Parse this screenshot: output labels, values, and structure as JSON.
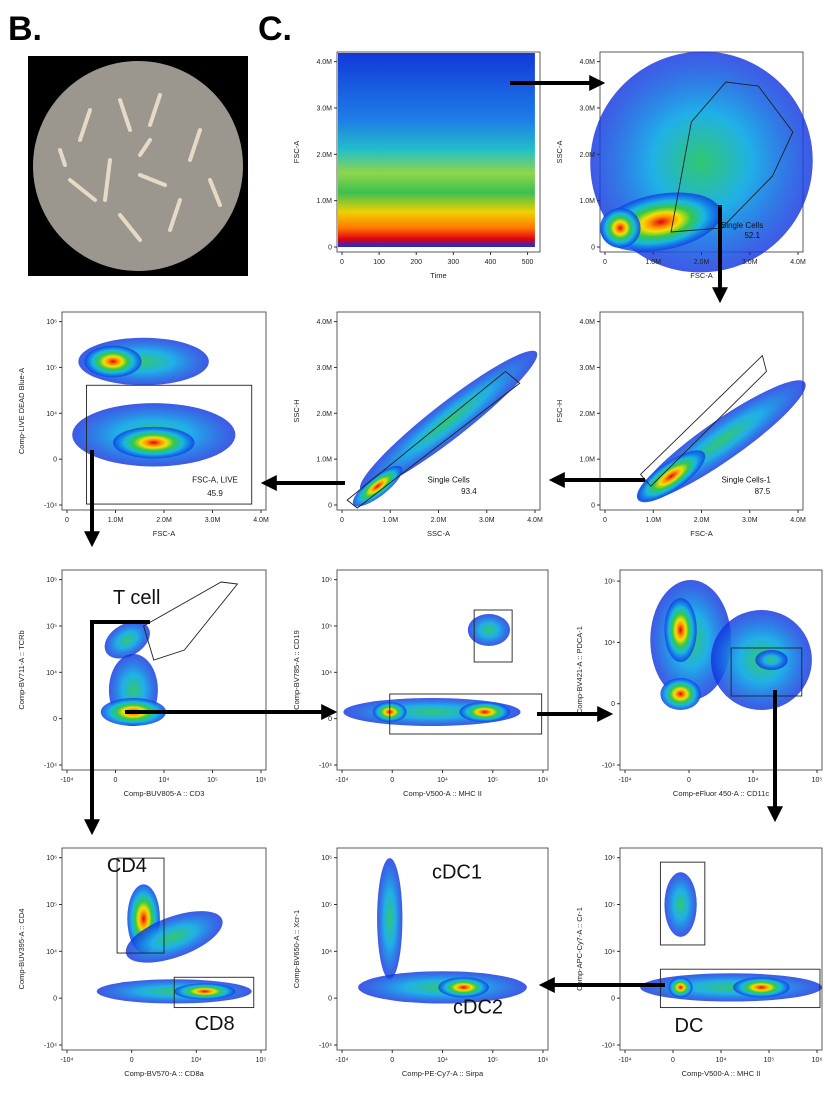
{
  "panel_labels": [
    "B.",
    "C."
  ],
  "plots": [
    {
      "y_label": "FSC-A",
      "x_label": "Time",
      "xticks": [
        "0",
        "100",
        "200",
        "300",
        "400",
        "500"
      ],
      "yticks": [
        "0",
        "1.0M",
        "2.0M",
        "3.0M",
        "4.0M"
      ],
      "annotations": []
    },
    {
      "y_label": "SSC-A",
      "x_label": "FSC-A",
      "xticks": [
        "0",
        "1.0M",
        "2.0M",
        "3.0M",
        "4.0M"
      ],
      "yticks": [
        "0",
        "1.0M",
        "2.0M",
        "3.0M",
        "4.0M"
      ],
      "annotations": [
        "Single Cells",
        "52.1"
      ]
    },
    {
      "y_label": "Comp-LIVE DEAD Blue-A",
      "x_label": "FSC-A",
      "xticks": [
        "0",
        "1.0M",
        "2.0M",
        "3.0M",
        "4.0M"
      ],
      "yticks": [
        "-10⁴",
        "0",
        "10⁴",
        "10⁵",
        "10⁶"
      ],
      "annotations": [
        "FSC-A, LIVE",
        "45.9"
      ]
    },
    {
      "y_label": "SSC-H",
      "x_label": "SSC-A",
      "xticks": [
        "0",
        "1.0M",
        "2.0M",
        "3.0M",
        "4.0M"
      ],
      "yticks": [
        "0",
        "1.0M",
        "2.0M",
        "3.0M",
        "4.0M"
      ],
      "annotations": [
        "Single Cells",
        "93.4"
      ]
    },
    {
      "y_label": "FSC-H",
      "x_label": "FSC-A",
      "xticks": [
        "0",
        "1.0M",
        "2.0M",
        "3.0M",
        "4.0M"
      ],
      "yticks": [
        "0",
        "1.0M",
        "2.0M",
        "3.0M",
        "4.0M"
      ],
      "annotations": [
        "Single Cells-1",
        "87.5"
      ]
    },
    {
      "y_label": "Comp-BV711-A :: TCRb",
      "x_label": "Comp-BUV805-A :: CD3",
      "xticks": [
        "-10⁴",
        "0",
        "10⁴",
        "10⁵",
        "10⁶"
      ],
      "yticks": [
        "-10⁴",
        "0",
        "10⁴",
        "10⁵",
        "10⁶"
      ],
      "annotations": [
        "T cell"
      ]
    },
    {
      "y_label": "Comp-BV785-A :: CD19",
      "x_label": "Comp-V500-A :: MHC II",
      "xticks": [
        "-10⁴",
        "0",
        "10⁴",
        "10⁵",
        "10⁶"
      ],
      "yticks": [
        "-10⁴",
        "0",
        "10⁴",
        "10⁵",
        "10⁶"
      ],
      "annotations": []
    },
    {
      "y_label": "Comp-BV421-A :: PDCA-1",
      "x_label": "Comp-eFluor 450-A :: CD11c",
      "xticks": [
        "-10⁴",
        "0",
        "10⁴",
        "10⁵"
      ],
      "yticks": [
        "-10⁴",
        "0",
        "10⁴",
        "10⁵"
      ],
      "annotations": []
    },
    {
      "y_label": "Comp-BUV395-A :: CD4",
      "x_label": "Comp-BV570-A :: CD8a",
      "xticks": [
        "-10⁴",
        "0",
        "10⁴",
        "10⁵"
      ],
      "yticks": [
        "-10⁴",
        "0",
        "10⁴",
        "10⁵",
        "10⁶"
      ],
      "annotations": [
        "CD4",
        "CD8"
      ]
    },
    {
      "y_label": "Comp-BV650-A :: Xcr-1",
      "x_label": "Comp-PE-Cy7-A :: Sirpa",
      "xticks": [
        "-10⁴",
        "0",
        "10⁴",
        "10⁵",
        "10⁶"
      ],
      "yticks": [
        "-10⁴",
        "0",
        "10⁴",
        "10⁵",
        "10⁶"
      ],
      "annotations": [
        "cDC1",
        "cDC2"
      ]
    },
    {
      "y_label": "Comp-APC-Cy7-A :: Cr-1",
      "x_label": "Comp-V500-A :: MHC II",
      "xticks": [
        "-10⁴",
        "0",
        "10⁴",
        "10⁵",
        "10⁶"
      ],
      "yticks": [
        "-10⁴",
        "0",
        "10⁴",
        "10⁵",
        "10⁶"
      ],
      "annotations": [
        "DC"
      ]
    }
  ]
}
